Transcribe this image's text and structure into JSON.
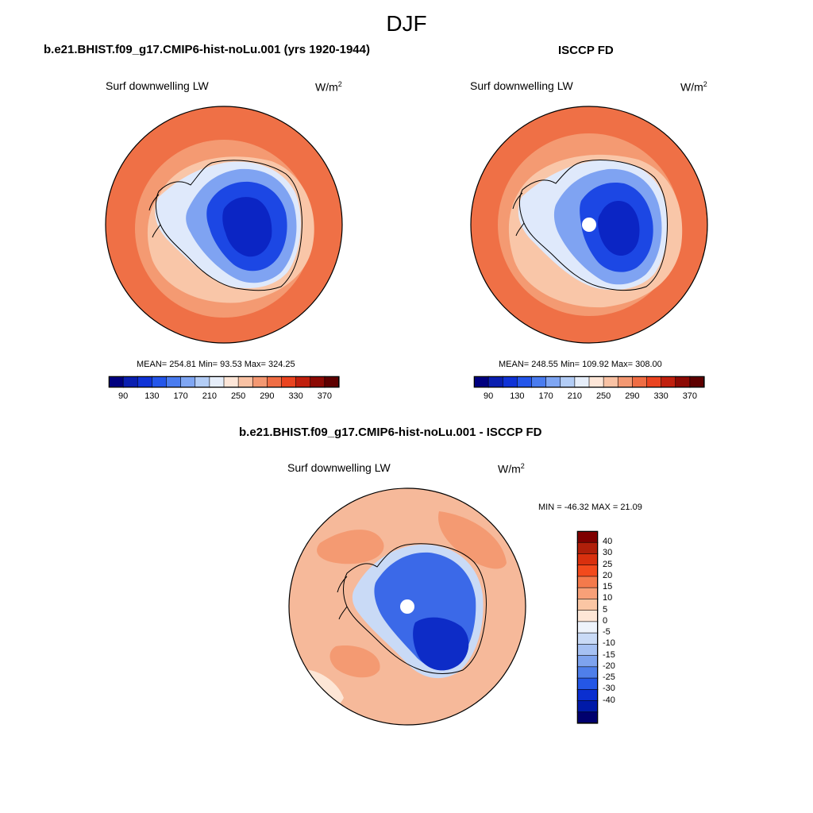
{
  "season_title": "DJF",
  "panels": [
    {
      "title": "b.e21.BHIST.f09_g17.CMIP6-hist-noLu.001 (yrs 1920-1944)",
      "variable": "Surf downwelling LW",
      "units_base": "W/m",
      "units_exp": "2",
      "stats": "MEAN= 254.81  Min=  93.53  Max= 324.25",
      "pole_hole": false
    },
    {
      "title": "ISCCP FD",
      "variable": "Surf downwelling LW",
      "units_base": "W/m",
      "units_exp": "2",
      "stats": "MEAN= 248.55  Min= 109.92  Max= 308.00",
      "pole_hole": true
    }
  ],
  "abs_colorbar": {
    "colors": [
      "#00007f",
      "#0a1fb0",
      "#1033d6",
      "#2456ea",
      "#4a7cef",
      "#7fa6f3",
      "#b3cdf6",
      "#e6eefa",
      "#fde6d8",
      "#f9c2a4",
      "#f39872",
      "#ef6d44",
      "#ea4420",
      "#c0200e",
      "#8c0a04",
      "#5e0000"
    ],
    "tick_labels": [
      "90",
      "130",
      "170",
      "210",
      "250",
      "290",
      "330",
      "370"
    ]
  },
  "diff_panel": {
    "title": "b.e21.BHIST.f09_g17.CMIP6-hist-noLu.001 - ISCCP FD",
    "variable": "Surf downwelling LW",
    "units_base": "W/m",
    "units_exp": "2",
    "stats": "MIN = -46.32 MAX =  21.09"
  },
  "diff_colorbar": {
    "colors_top_to_bottom": [
      "#7f0000",
      "#b01f0a",
      "#d9300e",
      "#f24a1c",
      "#f47a4c",
      "#f8a078",
      "#fbc6a4",
      "#fde6d6",
      "#eef3fb",
      "#c9daf6",
      "#a6c1f3",
      "#7ea3ee",
      "#4f7fea",
      "#2457e6",
      "#0a2fd0",
      "#001aa8",
      "#00006e"
    ],
    "tick_labels_top_to_bottom": [
      "40",
      "30",
      "25",
      "20",
      "15",
      "10",
      "5",
      "0",
      "-5",
      "-10",
      "-15",
      "-20",
      "-25",
      "-30",
      "-40"
    ]
  },
  "colors": {
    "map_ocean_warm": "#ef7046",
    "map_ocean_mid": "#f49a72",
    "map_shelf": "#f9c6a8",
    "map_ice_light": "#dfe9fb",
    "map_ice_mid": "#7fa3f2",
    "map_ice_deep": "#1c47e4",
    "map_ice_core": "#0b25c4",
    "diff_bg": "#f6b99a",
    "diff_blue": "#3b69e8",
    "diff_blue_deep": "#0d2cc7"
  }
}
